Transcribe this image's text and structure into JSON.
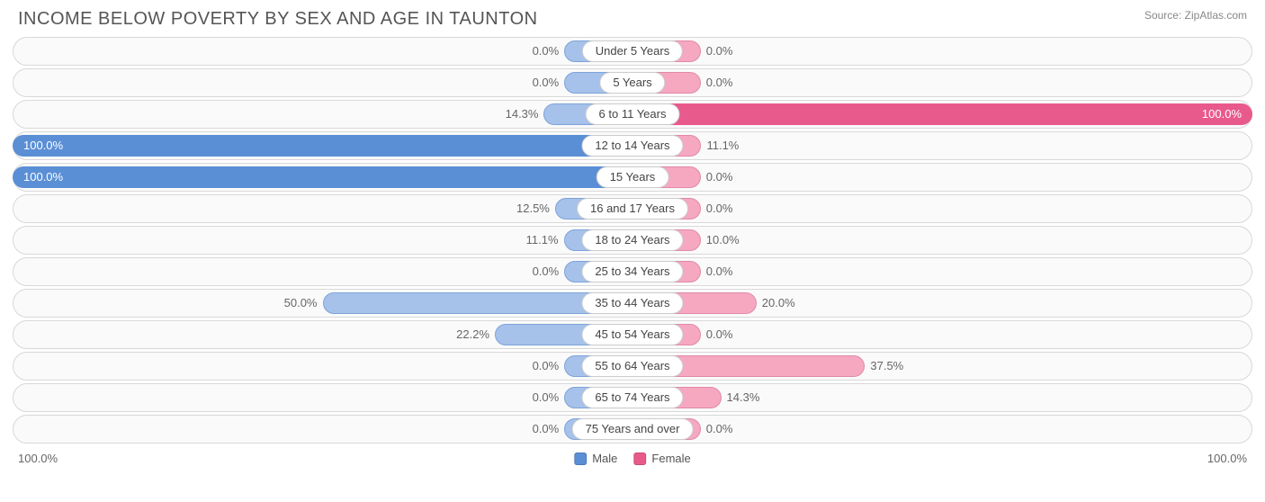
{
  "title": "INCOME BELOW POVERTY BY SEX AND AGE IN TAUNTON",
  "source": "Source: ZipAtlas.com",
  "chart": {
    "type": "diverging-bar",
    "axis_left_label": "100.0%",
    "axis_right_label": "100.0%",
    "legend": {
      "male_label": "Male",
      "female_label": "Female"
    },
    "colors": {
      "male_light": "#a6c2ea",
      "male_dark": "#5a8fd6",
      "female_light": "#f5a8c0",
      "female_dark": "#e95a8c",
      "row_border": "#d8d8d8",
      "row_bg": "#fafafa",
      "badge_bg": "#ffffff",
      "badge_border": "#cccccc",
      "text": "#666666"
    },
    "min_bar_pct": 11,
    "rows": [
      {
        "age": "Under 5 Years",
        "male": 0.0,
        "female": 0.0
      },
      {
        "age": "5 Years",
        "male": 0.0,
        "female": 0.0
      },
      {
        "age": "6 to 11 Years",
        "male": 14.3,
        "female": 100.0
      },
      {
        "age": "12 to 14 Years",
        "male": 100.0,
        "female": 11.1
      },
      {
        "age": "15 Years",
        "male": 100.0,
        "female": 0.0
      },
      {
        "age": "16 and 17 Years",
        "male": 12.5,
        "female": 0.0
      },
      {
        "age": "18 to 24 Years",
        "male": 11.1,
        "female": 10.0
      },
      {
        "age": "25 to 34 Years",
        "male": 0.0,
        "female": 0.0
      },
      {
        "age": "35 to 44 Years",
        "male": 50.0,
        "female": 20.0
      },
      {
        "age": "45 to 54 Years",
        "male": 22.2,
        "female": 0.0
      },
      {
        "age": "55 to 64 Years",
        "male": 0.0,
        "female": 37.5
      },
      {
        "age": "65 to 74 Years",
        "male": 0.0,
        "female": 14.3
      },
      {
        "age": "75 Years and over",
        "male": 0.0,
        "female": 0.0
      }
    ]
  }
}
